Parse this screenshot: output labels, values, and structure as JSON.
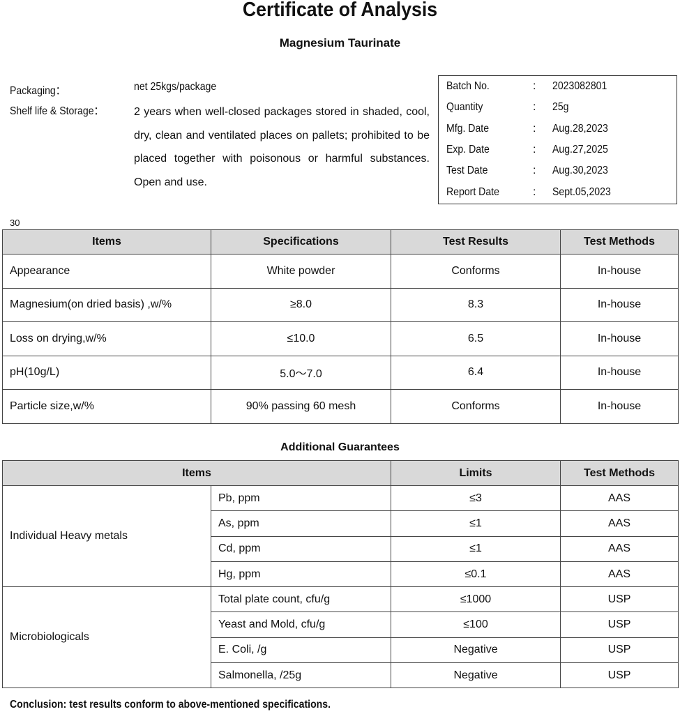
{
  "header": {
    "title": "Certificate of Analysis",
    "subtitle": "Magnesium Taurinate"
  },
  "info": {
    "packaging_label": "Packaging：",
    "packaging_value": "net 25kgs/package",
    "storage_label": "Shelf life & Storage：",
    "storage_value": "2 years when well-closed packages stored in shaded, cool, dry, clean and ventilated places on pallets; prohibited to be placed together with poisonous or harmful substances. Open and use."
  },
  "batch": [
    {
      "label": "Batch No.",
      "value": "2023082801"
    },
    {
      "label": "Quantity",
      "value": "25g"
    },
    {
      "label": "Mfg. Date",
      "value": "Aug.28,2023"
    },
    {
      "label": "Exp. Date",
      "value": "Aug.27,2025"
    },
    {
      "label": "Test Date",
      "value": "Aug.30,2023"
    },
    {
      "label": "Report Date",
      "value": "Sept.05,2023"
    }
  ],
  "page_number": "30",
  "table1": {
    "headers": [
      "Items",
      "Specifications",
      "Test Results",
      "Test Methods"
    ],
    "rows": [
      [
        "Appearance",
        "White powder",
        "Conforms",
        "In-house"
      ],
      [
        "Magnesium(on dried basis) ,w/%",
        "≥8.0",
        "8.3",
        "In-house"
      ],
      [
        "Loss on drying,w/%",
        "≤10.0",
        "6.5",
        "In-house"
      ],
      [
        "pH(10g/L)",
        "5.0～7.0",
        "6.4",
        "In-house"
      ],
      [
        "Particle size,w/%",
        "90% passing 60 mesh",
        "Conforms",
        "In-house"
      ]
    ]
  },
  "additional": {
    "title": "Additional Guarantees",
    "headers": [
      "Items",
      "Limits",
      "Test Methods"
    ],
    "groups": [
      {
        "name": "Individual Heavy metals",
        "rows": [
          [
            "Pb, ppm",
            "≤3",
            "AAS"
          ],
          [
            "As, ppm",
            "≤1",
            "AAS"
          ],
          [
            "Cd, ppm",
            "≤1",
            "AAS"
          ],
          [
            "Hg, ppm",
            "≤0.1",
            "AAS"
          ]
        ]
      },
      {
        "name": "Microbiologicals",
        "rows": [
          [
            "Total plate count, cfu/g",
            "≤1000",
            "USP"
          ],
          [
            "Yeast and Mold, cfu/g",
            "≤100",
            "USP"
          ],
          [
            "E. Coli, /g",
            "Negative",
            "USP"
          ],
          [
            "Salmonella, /25g",
            "Negative",
            "USP"
          ]
        ]
      }
    ]
  },
  "conclusion": "Conclusion: test results conform to above-mentioned specifications."
}
